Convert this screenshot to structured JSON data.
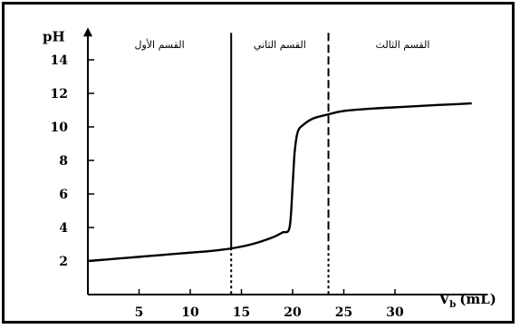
{
  "chart_data": {
    "type": "line",
    "title": "",
    "ylabel": "pH",
    "xlabel": "V",
    "xlabel_sub": "b",
    "xlabel_unit": "(mL)",
    "xlim": [
      0,
      38
    ],
    "ylim": [
      0,
      15.5
    ],
    "xticks": [
      5,
      10,
      15,
      20,
      25,
      30
    ],
    "yticks": [
      2,
      4,
      6,
      8,
      10,
      12,
      14
    ],
    "grid": false,
    "legend": "none",
    "region_boundaries": [
      14,
      23.5
    ],
    "region_labels": [
      "القسم الأول",
      "القسم الثاني",
      "القسم الثالث"
    ],
    "series": [
      {
        "x": [
          0,
          2,
          4,
          6,
          8,
          10,
          12,
          14,
          16,
          18,
          19,
          19.7,
          20,
          20.2,
          20.5,
          21,
          22,
          23.5,
          25,
          28,
          31,
          34,
          37.5
        ],
        "y": [
          2.0,
          2.1,
          2.2,
          2.3,
          2.4,
          2.5,
          2.6,
          2.75,
          3.0,
          3.4,
          3.7,
          4.0,
          6.5,
          8.5,
          9.7,
          10.1,
          10.5,
          10.75,
          10.95,
          11.1,
          11.2,
          11.3,
          11.4
        ],
        "color": "#000000"
      }
    ]
  }
}
